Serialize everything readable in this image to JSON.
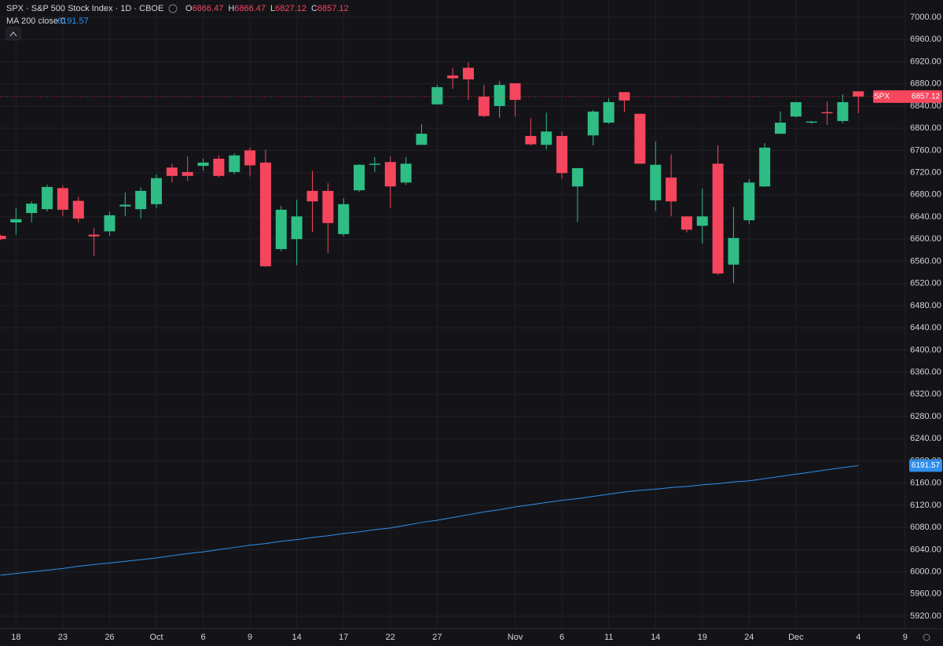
{
  "chart_data": {
    "type": "candlestick",
    "title": "SPX · S&P 500 Stock Index · 1D · CBOE",
    "ohlc_labels": [
      "O",
      "H",
      "L",
      "C"
    ],
    "categories": [
      null,
      "18",
      null,
      null,
      "23",
      null,
      null,
      "26",
      null,
      null,
      "Oct",
      null,
      null,
      "6",
      null,
      null,
      "9",
      null,
      null,
      "14",
      null,
      null,
      "17",
      null,
      null,
      "22",
      null,
      null,
      "27",
      null,
      null,
      null,
      null,
      "Nov",
      null,
      null,
      "6",
      null,
      null,
      "11",
      null,
      null,
      "14",
      null,
      null,
      "19",
      null,
      null,
      "24",
      null,
      null,
      "Dec",
      null,
      null,
      null,
      "4",
      null,
      null,
      "9"
    ],
    "series": [
      {
        "name": "SPX",
        "up_color": "#2ebd85",
        "down_color": "#f6465d",
        "open": [
          6606,
          6630,
          6647,
          6654,
          6692,
          6669,
          6608,
          6614,
          6659,
          6654,
          6663,
          6729,
          6721,
          6732,
          6745,
          6721,
          6760,
          6738,
          6582,
          6600,
          6687,
          6687,
          6609,
          6688,
          6734,
          6739,
          6702,
          6770,
          6843,
          6895,
          6909,
          6857,
          6840,
          6881,
          6786,
          6770,
          6786,
          6695,
          6787,
          6810,
          6865,
          6826,
          6670,
          6711,
          6641,
          6624,
          6736,
          6554,
          6634,
          6695,
          6790,
          6821,
          6810,
          6829,
          6813,
          6866.47,
          null,
          null,
          null
        ],
        "high": [
          6608,
          6656,
          6668,
          6698,
          6697,
          6676,
          6620,
          6649,
          6684,
          6693,
          6717,
          6736,
          6749,
          6745,
          6751,
          6755,
          6765,
          6761,
          6660,
          6671,
          6723,
          6701,
          6674,
          6735,
          6748,
          6749,
          6748,
          6807,
          6878,
          6909,
          6919,
          6878,
          6885,
          6881,
          6818,
          6828,
          6794,
          6728,
          6833,
          6854,
          6865,
          6826,
          6776,
          6753,
          6641,
          6691,
          6769,
          6658,
          6708,
          6773,
          6830,
          6847,
          6813,
          6848,
          6861,
          6866.47,
          null,
          null,
          null
        ],
        "low": [
          6598,
          6608,
          6630,
          6650,
          6641,
          6630,
          6570,
          6606,
          6642,
          6637,
          6656,
          6702,
          6705,
          6723,
          6711,
          6717,
          6713,
          6550,
          6578,
          6553,
          6613,
          6575,
          6605,
          6685,
          6721,
          6656,
          6698,
          6770,
          6843,
          6871,
          6851,
          6820,
          6819,
          6821,
          6769,
          6762,
          6709,
          6631,
          6769,
          6808,
          6829,
          6736,
          6651,
          6641,
          6612,
          6592,
          6535,
          6521,
          6627,
          6694,
          6790,
          6820,
          6808,
          6806,
          6809,
          6827.12,
          null,
          null,
          null
        ],
        "close": [
          6600,
          6636,
          6664,
          6694,
          6653,
          6637,
          6605,
          6643,
          6662,
          6687,
          6710,
          6714,
          6714,
          6738,
          6714,
          6751,
          6733,
          6551,
          6653,
          6641,
          6668,
          6629,
          6663,
          6734,
          6736,
          6695,
          6736,
          6790,
          6874,
          6890,
          6888,
          6822,
          6878,
          6851,
          6771,
          6794,
          6719,
          6728,
          6830,
          6847,
          6850,
          6736,
          6734,
          6668,
          6617,
          6641,
          6538,
          6602,
          6702,
          6765,
          6810,
          6847,
          6812,
          6827,
          6847,
          6857.12,
          null,
          null,
          null
        ]
      },
      {
        "name": "MA 200 close 0",
        "type": "line",
        "color": "#2f8fea",
        "values": [
          5994,
          5997,
          6000,
          6003,
          6006,
          6010,
          6013,
          6016,
          6019,
          6022,
          6025,
          6029,
          6033,
          6036,
          6040,
          6044,
          6048,
          6051,
          6055,
          6058,
          6062,
          6065,
          6069,
          6072,
          6076,
          6079,
          6084,
          6089,
          6093,
          6098,
          6103,
          6108,
          6112,
          6117,
          6121,
          6125,
          6129,
          6132,
          6136,
          6140,
          6144,
          6147,
          6149,
          6152,
          6154,
          6157,
          6159,
          6162,
          6164,
          6168,
          6172,
          6176,
          6180,
          6184,
          6188,
          6191.57,
          null,
          null,
          null
        ]
      }
    ],
    "ylim": [
      5897.4,
      7031.2
    ],
    "yticks": [
      {
        "value": 5920,
        "label": "5920.00"
      },
      {
        "value": 5960,
        "label": "5960.00"
      },
      {
        "value": 6000,
        "label": "6000.00"
      },
      {
        "value": 6040,
        "label": "6040.00"
      },
      {
        "value": 6080,
        "label": "6080.00"
      },
      {
        "value": 6120,
        "label": "6120.00"
      },
      {
        "value": 6160,
        "label": "6160.00"
      },
      {
        "value": 6200,
        "label": "6200.00"
      },
      {
        "value": 6240,
        "label": "6240.00"
      },
      {
        "value": 6280,
        "label": "6280.00"
      },
      {
        "value": 6320,
        "label": "6320.00"
      },
      {
        "value": 6360,
        "label": "6360.00"
      },
      {
        "value": 6400,
        "label": "6400.00"
      },
      {
        "value": 6440,
        "label": "6440.00"
      },
      {
        "value": 6480,
        "label": "6480.00"
      },
      {
        "value": 6520,
        "label": "6520.00"
      },
      {
        "value": 6560,
        "label": "6560.00"
      },
      {
        "value": 6600,
        "label": "6600.00"
      },
      {
        "value": 6640,
        "label": "6640.00"
      },
      {
        "value": 6680,
        "label": "6680.00"
      },
      {
        "value": 6720,
        "label": "6720.00"
      },
      {
        "value": 6760,
        "label": "6760.00"
      },
      {
        "value": 6800,
        "label": "6800.00"
      },
      {
        "value": 6840,
        "label": "6840.00"
      },
      {
        "value": 6880,
        "label": "6880.00"
      },
      {
        "value": 6920,
        "label": "6920.00"
      },
      {
        "value": 6960,
        "label": "6960.00"
      },
      {
        "value": 7000,
        "label": "7000.00"
      }
    ],
    "grid": true
  }
}
